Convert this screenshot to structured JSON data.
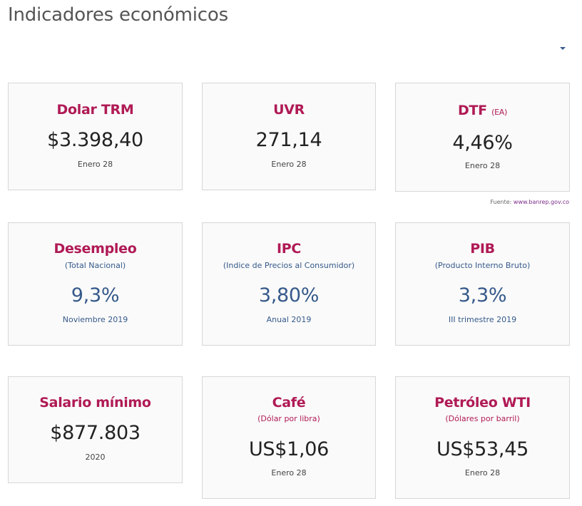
{
  "page": {
    "title": "Indicadores económicos"
  },
  "source": {
    "label": "Fuente:",
    "link": "www.banrep.gov.co"
  },
  "cards": {
    "trm": {
      "title": "Dolar TRM",
      "value": "$3.398,40",
      "date": "Enero 28"
    },
    "uvr": {
      "title": "UVR",
      "value": "271,14",
      "date": "Enero 28"
    },
    "dtf": {
      "title": "DTF",
      "title_suffix": "(EA)",
      "value": "4,46%",
      "date": "Enero 28"
    },
    "desempleo": {
      "title": "Desempleo",
      "subtitle": "(Total Nacional)",
      "value": "9,3%",
      "date": "Noviembre 2019"
    },
    "ipc": {
      "title": "IPC",
      "subtitle": "(Indice de Precios al Consumidor)",
      "value": "3,80%",
      "date": "Anual 2019"
    },
    "pib": {
      "title": "PIB",
      "subtitle": "(Producto Interno Bruto)",
      "value": "3,3%",
      "date": "III trimestre 2019"
    },
    "salario": {
      "title": "Salario mínimo",
      "value": "$877.803",
      "date": "2020"
    },
    "cafe": {
      "title": "Café",
      "subtitle": "(Dólar por libra)",
      "value": "US$1,06",
      "date": "Enero 28"
    },
    "petroleo": {
      "title": "Petróleo WTI",
      "subtitle": "(Dólares por barril)",
      "value": "US$53,45",
      "date": "Enero 28"
    }
  },
  "colors": {
    "accent": "#b01a55",
    "blue": "#35598a",
    "border": "#d7d7d7"
  }
}
